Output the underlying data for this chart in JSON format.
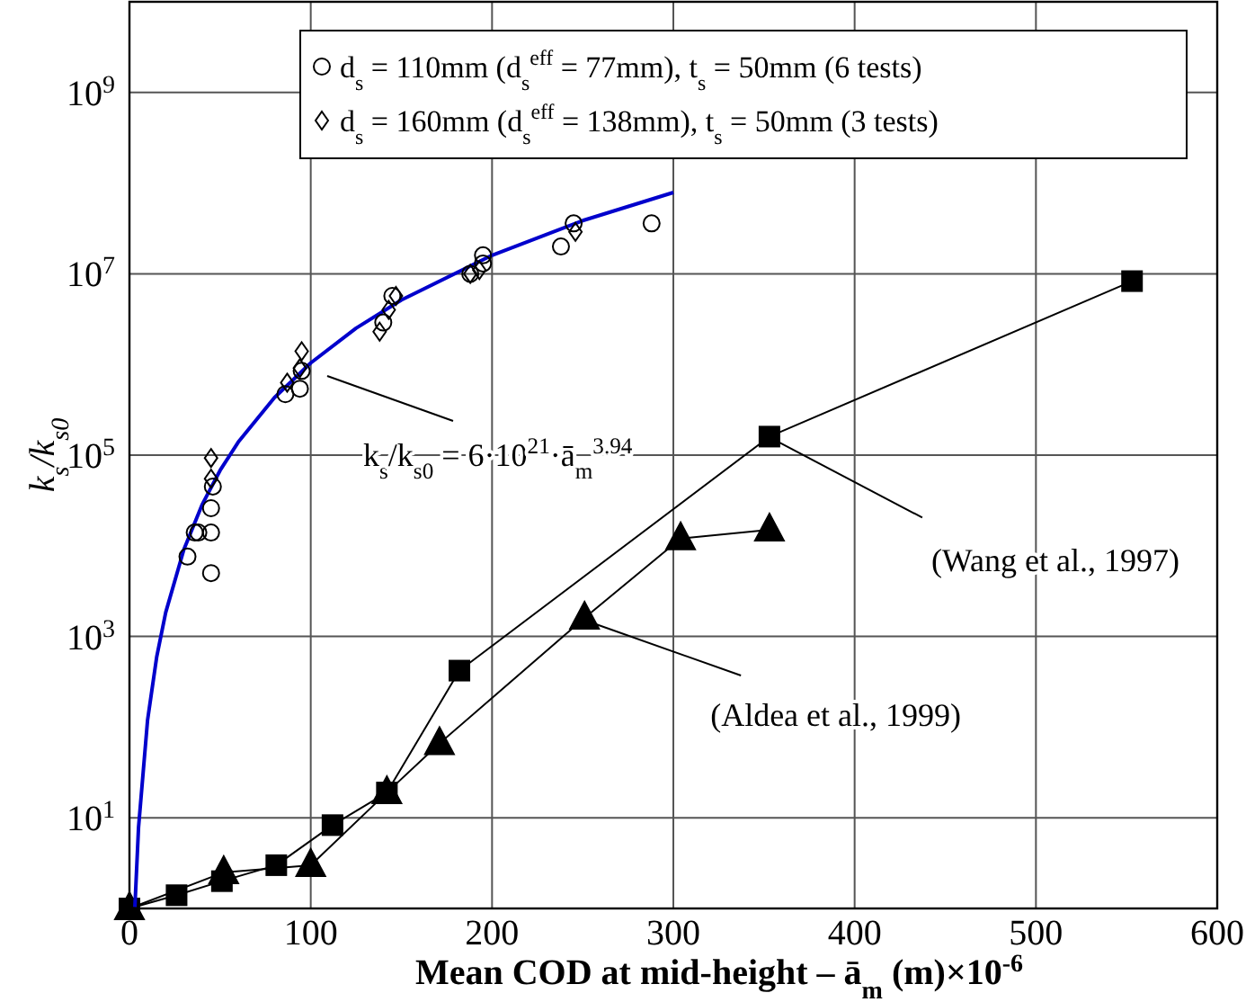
{
  "chart_data": {
    "type": "scatter",
    "xlabel": "Mean COD at mid-height – ā$_{m}$ (m)×10$^{-6}$",
    "ylabel": "k$_{s}$/k$_{s0}$",
    "xlim": [
      0,
      600
    ],
    "xticks": [
      0,
      100,
      200,
      300,
      400,
      500,
      600
    ],
    "ylim": [
      1,
      10000000000
    ],
    "yticks": [
      {
        "value": 10,
        "label": "10$^{1}$"
      },
      {
        "value": 1000,
        "label": "10$^{3}$"
      },
      {
        "value": 100000,
        "label": "10$^{5}$"
      },
      {
        "value": 10000000,
        "label": "10$^{7}$"
      },
      {
        "value": 1000000000,
        "label": "10$^{9}$"
      }
    ],
    "log": "y",
    "grid": true,
    "legend": "top right",
    "series": [
      {
        "name": "d$_{s}$ = 110mm (d$_{s}$$^{eff}$ = 77mm), t$_{s}$ = 50mm (6 tests)",
        "marker": "circle",
        "color": "#000000",
        "x": [
          32,
          36,
          38,
          45,
          45,
          45,
          46,
          86,
          94,
          95,
          140,
          145,
          188,
          195,
          195,
          238,
          245,
          288
        ],
        "values": [
          7600,
          14000,
          14000,
          26000,
          14000,
          5000,
          45000,
          470000,
          540000,
          850000,
          2900000,
          5700000,
          10000000,
          16000000,
          13000000,
          20000000,
          36000000,
          36000000
        ]
      },
      {
        "name": "d$_{s}$ = 160mm (d$_{s}$$^{eff}$ = 138mm), t$_{s}$ = 50mm (3 tests)",
        "marker": "diamond",
        "color": "#000000",
        "x": [
          45,
          45,
          87,
          94,
          95,
          138,
          143,
          147,
          188,
          193,
          246
        ],
        "values": [
          93000,
          55000,
          630000,
          910000,
          1400000,
          2300000,
          4000000,
          5700000,
          10000000,
          11000000,
          29000000
        ]
      },
      {
        "type": "line",
        "marker": "none",
        "color": "#0000cc",
        "x": [
          3,
          5,
          10,
          15,
          20,
          30,
          40,
          50,
          60,
          80,
          100,
          125,
          150,
          200,
          250,
          300
        ],
        "values": [
          1.04,
          7.8,
          120,
          590,
          1840,
          9080,
          28200,
          67900,
          139000,
          432000,
          1040000,
          2510000,
          5150000,
          16000000,
          38600000,
          78900000
        ]
      },
      {
        "type": "line",
        "marker": "square",
        "color": "#000000",
        "x": [
          0,
          26,
          51,
          81,
          112,
          142,
          182,
          353,
          553
        ],
        "values": [
          1,
          1.4,
          2,
          3,
          8.3,
          19,
          420,
          160000,
          8300000
        ]
      },
      {
        "type": "line",
        "marker": "triangle",
        "color": "#000000",
        "x": [
          0,
          52,
          100,
          142,
          171,
          251,
          304,
          353
        ],
        "values": [
          1,
          2.5,
          3,
          19,
          66,
          1600,
          12000,
          15000
        ]
      }
    ],
    "annotations": [
      "k$_{s}$/k$_{s0}$ = 6·10$^{21}$·ā$_{m}$$^{3.94}$",
      {
        "text": "(Wang et al., 1997)",
        "x": 353,
        "y": 160000
      },
      {
        "text": "(Aldea et al., 1999)",
        "x": 251,
        "y": 1600
      }
    ]
  }
}
